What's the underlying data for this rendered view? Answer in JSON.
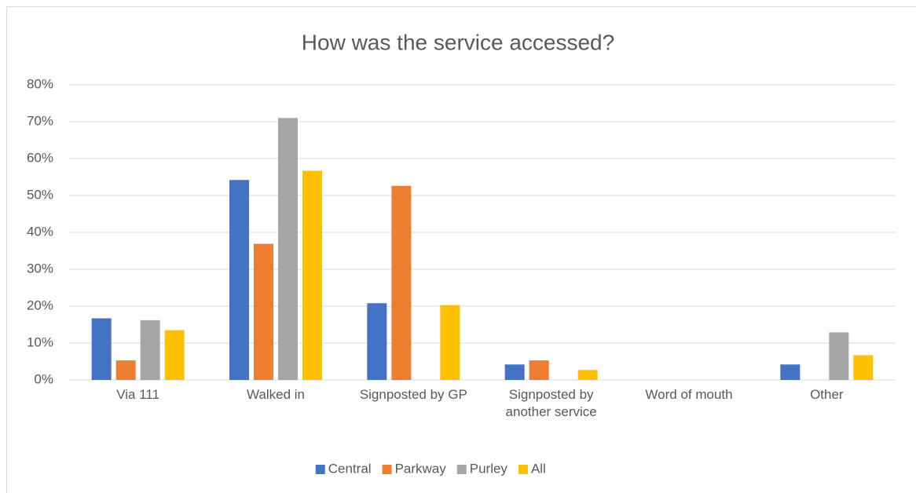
{
  "chart_data": {
    "type": "bar",
    "title": "How was the service accessed?",
    "categories": [
      "Via 111",
      "Walked in",
      "Signposted by GP",
      "Signposted by another service",
      "Word of mouth",
      "Other"
    ],
    "series": [
      {
        "name": "Central",
        "color": "#4472c4",
        "values": [
          16.7,
          54.2,
          20.8,
          4.2,
          0,
          4.2
        ]
      },
      {
        "name": "Parkway",
        "color": "#ed7d31",
        "values": [
          5.3,
          36.9,
          52.6,
          5.3,
          0,
          0
        ]
      },
      {
        "name": "Purley",
        "color": "#a5a5a5",
        "values": [
          16.2,
          71,
          0,
          0,
          0,
          12.9
        ]
      },
      {
        "name": "All",
        "color": "#ffc000",
        "values": [
          13.5,
          56.7,
          20.3,
          2.7,
          0,
          6.7
        ]
      }
    ],
    "ylim": [
      0,
      80
    ],
    "yticks": [
      {
        "value": 0,
        "label": "0%"
      },
      {
        "value": 10,
        "label": "10%"
      },
      {
        "value": 20,
        "label": "20%"
      },
      {
        "value": 30,
        "label": "30%"
      },
      {
        "value": 40,
        "label": "40%"
      },
      {
        "value": 50,
        "label": "50%"
      },
      {
        "value": 60,
        "label": "60%"
      },
      {
        "value": 70,
        "label": "70%"
      },
      {
        "value": 80,
        "label": "80%"
      }
    ],
    "grid": true,
    "legend": "bottom"
  }
}
